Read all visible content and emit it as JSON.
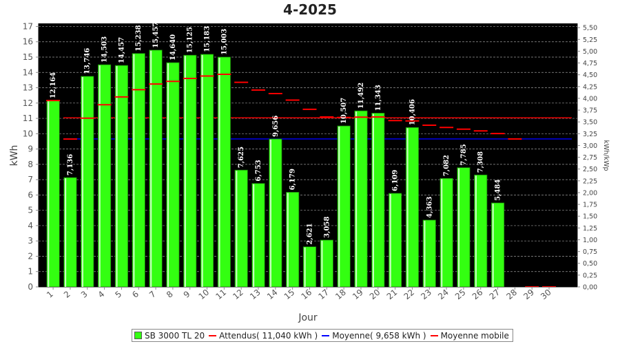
{
  "chart_data": {
    "type": "bar",
    "title": "4-2025",
    "xlabel": "Jour",
    "ylabel": "kWh",
    "y2label": "kWh/kWp",
    "ylim": [
      0,
      17.2
    ],
    "y2lim": [
      0,
      5.59
    ],
    "yticks": [
      "0",
      "1",
      "2",
      "3",
      "4",
      "5",
      "6",
      "7",
      "8",
      "9",
      "10",
      "11",
      "12",
      "13",
      "14",
      "15",
      "16",
      "17"
    ],
    "y2ticks": [
      "0,00",
      "0,25",
      "0,50",
      "0,75",
      "1,00",
      "1,25",
      "1,50",
      "1,75",
      "2,00",
      "2,25",
      "2,50",
      "2,75",
      "3,00",
      "3,25",
      "3,50",
      "3,75",
      "4,00",
      "4,25",
      "4,50",
      "4,75",
      "5,00",
      "5,25",
      "5,50"
    ],
    "categories": [
      "1",
      "2",
      "3",
      "4",
      "5",
      "6",
      "7",
      "8",
      "9",
      "10",
      "11",
      "12",
      "13",
      "14",
      "15",
      "16",
      "17",
      "18",
      "19",
      "20",
      "21",
      "22",
      "23",
      "24",
      "25",
      "26",
      "27",
      "28",
      "29",
      "30"
    ],
    "series": [
      {
        "name": "SB 3000 TL 20",
        "color": "#33ff11",
        "values": [
          12.164,
          7.136,
          13.746,
          14.503,
          14.457,
          15.238,
          15.457,
          14.64,
          15.125,
          15.183,
          15.003,
          7.625,
          6.753,
          9.656,
          6.179,
          2.621,
          3.058,
          10.507,
          11.492,
          11.343,
          6.109,
          10.406,
          4.363,
          7.082,
          7.785,
          7.308,
          5.484,
          null,
          null,
          null
        ],
        "labels": [
          "12,164",
          "7,136",
          "13,746",
          "14,503",
          "14,457",
          "15,238",
          "15,457",
          "14,640",
          "15,125",
          "15,183",
          "15,003",
          "7,625",
          "6,753",
          "9,656",
          "6,179",
          "2,621",
          "3,058",
          "10,507",
          "11,492",
          "11,343",
          "6,109",
          "10,406",
          "4,363",
          "7,082",
          "7,785",
          "7,308",
          "5,484",
          "",
          "",
          ""
        ]
      },
      {
        "name": "Moyenne mobile",
        "color": "#ff0000",
        "values": [
          12.164,
          9.65,
          11.015,
          11.887,
          12.401,
          12.874,
          13.243,
          13.418,
          13.608,
          13.766,
          13.878,
          13.357,
          12.849,
          12.621,
          12.191,
          11.593,
          11.091,
          11.058,
          11.081,
          11.094,
          10.857,
          10.834,
          10.553,
          10.408,
          10.297,
          10.183,
          10.009,
          9.658,
          0.0,
          0.0
        ]
      }
    ],
    "reference_lines": [
      {
        "name": "Attendus( 11,040 kWh )",
        "color": "#ff0000",
        "value": 11.04
      },
      {
        "name": "Moyenne( 9,658 kWh )",
        "color": "#0000ff",
        "value": 9.658
      }
    ],
    "grid": true,
    "legend_position": "bottom-center",
    "colors": {
      "plot_bg": "#000000",
      "grid": "#9a9a9a"
    }
  },
  "legend": [
    {
      "label": "SB 3000 TL 20",
      "kind": "box",
      "color": "#33ff11"
    },
    {
      "label": "Attendus( 11,040 kWh )",
      "kind": "line",
      "color": "#ff0000"
    },
    {
      "label": "Moyenne( 9,658 kWh )",
      "kind": "line",
      "color": "#0000ff"
    },
    {
      "label": "Moyenne mobile",
      "kind": "line",
      "color": "#ff0000"
    }
  ]
}
